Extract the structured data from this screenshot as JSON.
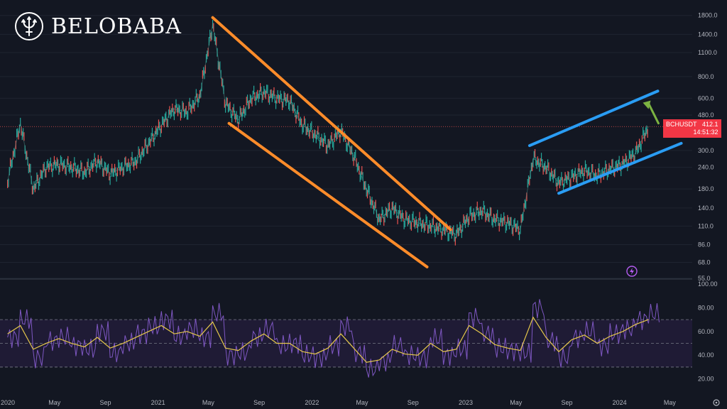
{
  "brand": {
    "name": "BELOBABA",
    "icon": "trident-icon"
  },
  "ticker": {
    "symbol": "BCHUSDT",
    "price": "412.1",
    "countdown": "14:51:32"
  },
  "colors": {
    "up": "#26a69a",
    "down": "#ef5350",
    "channel_down": "#ff8c2a",
    "channel_up": "#2a9df4",
    "arrow": "#7cb342",
    "rsi": "#7e57c2",
    "rsi_ma": "#e6c84b",
    "bg": "#131722"
  },
  "chart_data": [
    {
      "type": "line",
      "title": "",
      "scale": "log",
      "ylim": [
        55,
        1900
      ],
      "y_ticks": [
        "1800.0",
        "1400.0",
        "1100.0",
        "800.0",
        "600.0",
        "480.0",
        "300.0",
        "240.0",
        "180.0",
        "140.0",
        "110.0",
        "86.0",
        "68.0",
        "55.0"
      ],
      "y_tick_values": [
        1800,
        1400,
        1100,
        800,
        600,
        480,
        300,
        240,
        180,
        140,
        110,
        86,
        68,
        55
      ],
      "x_labels": [
        "2020",
        "May",
        "Sep",
        "2021",
        "May",
        "Sep",
        "2022",
        "May",
        "Sep",
        "2023",
        "May",
        "Sep",
        "2024",
        "May"
      ],
      "x_label_dates": [
        "2020-01",
        "2020-05",
        "2020-09",
        "2021-01",
        "2021-05",
        "2021-09",
        "2022-01",
        "2022-05",
        "2022-09",
        "2023-01",
        "2023-05",
        "2023-09",
        "2024-01",
        "2024-05"
      ],
      "series": [
        {
          "x": [
            "2020-01",
            "2020-02",
            "2020-03",
            "2020-04",
            "2020-05",
            "2020-06",
            "2020-07",
            "2020-08",
            "2020-09",
            "2020-10",
            "2020-11",
            "2020-12",
            "2021-01",
            "2021-02",
            "2021-03",
            "2021-04",
            "2021-05",
            "2021-06",
            "2021-07",
            "2021-08",
            "2021-09",
            "2021-10",
            "2021-11",
            "2021-12",
            "2022-01",
            "2022-02",
            "2022-03",
            "2022-04",
            "2022-05",
            "2022-06",
            "2022-07",
            "2022-08",
            "2022-09",
            "2022-10",
            "2022-11",
            "2022-12",
            "2023-01",
            "2023-02",
            "2023-03",
            "2023-04",
            "2023-05",
            "2023-06",
            "2023-07",
            "2023-08",
            "2023-09",
            "2023-10",
            "2023-11",
            "2023-12",
            "2024-01",
            "2024-02",
            "2024-03"
          ],
          "values": [
            200,
            430,
            180,
            240,
            250,
            240,
            225,
            260,
            220,
            240,
            260,
            330,
            420,
            520,
            500,
            620,
            1600,
            560,
            450,
            600,
            650,
            600,
            580,
            420,
            370,
            320,
            390,
            280,
            180,
            120,
            140,
            120,
            115,
            110,
            105,
            98,
            125,
            135,
            120,
            115,
            105,
            270,
            240,
            195,
            210,
            230,
            215,
            235,
            250,
            290,
            412
          ]
        }
      ],
      "annotations": [
        {
          "type": "descending-channel",
          "color": "orange"
        },
        {
          "type": "ascending-channel",
          "color": "blue"
        },
        {
          "type": "arrow-up",
          "color": "green"
        },
        {
          "type": "last-price-line",
          "value": 412.1
        }
      ]
    },
    {
      "type": "line",
      "title": "",
      "ylim": [
        15,
        100
      ],
      "y_ticks": [
        "100.00",
        "80.00",
        "60.00",
        "40.00",
        "20.00"
      ],
      "y_tick_values": [
        100,
        80,
        60,
        40,
        20
      ],
      "bands": [
        30,
        50,
        70
      ],
      "series": [
        {
          "x": [
            "2020-01",
            "2020-02",
            "2020-03",
            "2020-04",
            "2020-05",
            "2020-06",
            "2020-07",
            "2020-08",
            "2020-09",
            "2020-10",
            "2020-11",
            "2020-12",
            "2021-01",
            "2021-02",
            "2021-03",
            "2021-04",
            "2021-05",
            "2021-06",
            "2021-07",
            "2021-08",
            "2021-09",
            "2021-10",
            "2021-11",
            "2021-12",
            "2022-01",
            "2022-02",
            "2022-03",
            "2022-04",
            "2022-05",
            "2022-06",
            "2022-07",
            "2022-08",
            "2022-09",
            "2022-10",
            "2022-11",
            "2022-12",
            "2023-01",
            "2023-02",
            "2023-03",
            "2023-04",
            "2023-05",
            "2023-06",
            "2023-07",
            "2023-08",
            "2023-09",
            "2023-10",
            "2023-11",
            "2023-12",
            "2024-01",
            "2024-02",
            "2024-03"
          ],
          "values": [
            55,
            70,
            38,
            52,
            55,
            48,
            45,
            60,
            42,
            50,
            58,
            64,
            70,
            56,
            62,
            55,
            75,
            40,
            42,
            55,
            62,
            48,
            50,
            40,
            38,
            48,
            64,
            42,
            28,
            35,
            48,
            40,
            38,
            54,
            40,
            45,
            72,
            58,
            46,
            44,
            42,
            80,
            52,
            38,
            55,
            60,
            48,
            58,
            62,
            70,
            75
          ]
        },
        {
          "x": [
            "2020-01",
            "2020-02",
            "2020-03",
            "2020-04",
            "2020-05",
            "2020-06",
            "2020-07",
            "2020-08",
            "2020-09",
            "2020-10",
            "2020-11",
            "2020-12",
            "2021-01",
            "2021-02",
            "2021-03",
            "2021-04",
            "2021-05",
            "2021-06",
            "2021-07",
            "2021-08",
            "2021-09",
            "2021-10",
            "2021-11",
            "2021-12",
            "2022-01",
            "2022-02",
            "2022-03",
            "2022-04",
            "2022-05",
            "2022-06",
            "2022-07",
            "2022-08",
            "2022-09",
            "2022-10",
            "2022-11",
            "2022-12",
            "2023-01",
            "2023-02",
            "2023-03",
            "2023-04",
            "2023-05",
            "2023-06",
            "2023-07",
            "2023-08",
            "2023-09",
            "2023-10",
            "2023-11",
            "2023-12",
            "2024-01",
            "2024-02",
            "2024-03"
          ],
          "values": [
            58,
            65,
            45,
            50,
            54,
            50,
            47,
            55,
            46,
            50,
            55,
            60,
            65,
            58,
            60,
            56,
            68,
            46,
            44,
            52,
            58,
            50,
            50,
            43,
            41,
            46,
            58,
            46,
            34,
            36,
            45,
            41,
            40,
            50,
            43,
            45,
            65,
            58,
            49,
            46,
            44,
            72,
            55,
            43,
            53,
            57,
            50,
            56,
            60,
            66,
            70
          ]
        }
      ]
    }
  ]
}
